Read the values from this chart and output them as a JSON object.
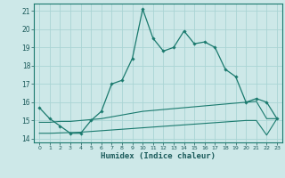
{
  "xlabel": "Humidex (Indice chaleur)",
  "background_color": "#cde8e8",
  "grid_color": "#aad4d4",
  "line_color": "#1a7a6e",
  "spine_color": "#1a7a6e",
  "tick_color": "#1a5a5a",
  "xlim": [
    -0.5,
    23.5
  ],
  "ylim": [
    13.8,
    21.4
  ],
  "xticks": [
    0,
    1,
    2,
    3,
    4,
    5,
    6,
    7,
    8,
    9,
    10,
    11,
    12,
    13,
    14,
    15,
    16,
    17,
    18,
    19,
    20,
    21,
    22,
    23
  ],
  "yticks": [
    14,
    15,
    16,
    17,
    18,
    19,
    20,
    21
  ],
  "main_x": [
    0,
    1,
    2,
    3,
    4,
    5,
    6,
    7,
    8,
    9,
    10,
    11,
    12,
    13,
    14,
    15,
    16,
    17,
    18,
    19,
    20,
    21,
    22,
    23
  ],
  "main_y": [
    15.7,
    15.1,
    14.7,
    14.3,
    14.3,
    15.0,
    15.5,
    17.0,
    17.2,
    18.4,
    21.1,
    19.5,
    18.8,
    19.0,
    19.9,
    19.2,
    19.3,
    19.0,
    17.8,
    17.4,
    16.0,
    16.2,
    16.0,
    15.1
  ],
  "line2_x": [
    0,
    1,
    2,
    3,
    4,
    5,
    6,
    7,
    8,
    9,
    10,
    11,
    12,
    13,
    14,
    15,
    16,
    17,
    18,
    19,
    20,
    21,
    22,
    23
  ],
  "line2_y": [
    14.9,
    14.9,
    14.95,
    14.95,
    15.0,
    15.05,
    15.1,
    15.2,
    15.3,
    15.4,
    15.5,
    15.55,
    15.6,
    15.65,
    15.7,
    15.75,
    15.8,
    15.85,
    15.9,
    15.95,
    16.0,
    16.05,
    15.1,
    15.1
  ],
  "line3_x": [
    0,
    1,
    2,
    3,
    4,
    5,
    6,
    7,
    8,
    9,
    10,
    11,
    12,
    13,
    14,
    15,
    16,
    17,
    18,
    19,
    20,
    21,
    22,
    23
  ],
  "line3_y": [
    14.3,
    14.3,
    14.32,
    14.34,
    14.36,
    14.4,
    14.44,
    14.48,
    14.52,
    14.56,
    14.6,
    14.64,
    14.68,
    14.72,
    14.76,
    14.8,
    14.84,
    14.88,
    14.92,
    14.96,
    15.0,
    15.0,
    14.2,
    15.1
  ]
}
